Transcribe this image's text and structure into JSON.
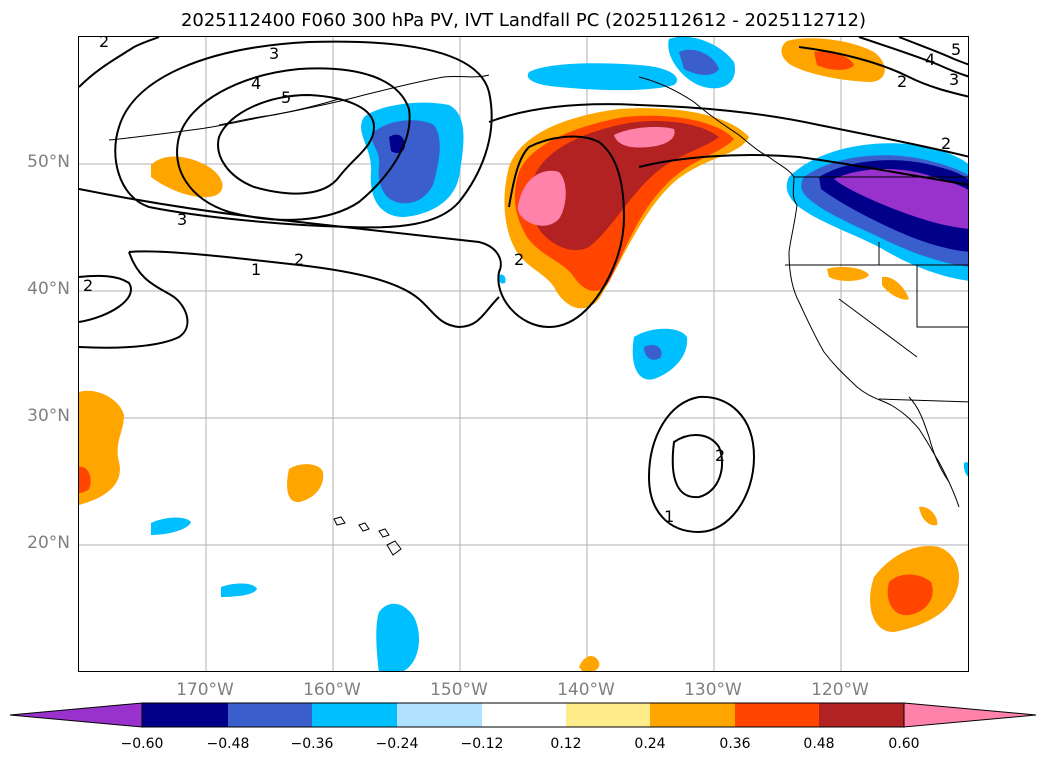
{
  "title": "2025112400 F060 300 hPa PV, IVT Landfall PC (2025112612 - 2025112712)",
  "map": {
    "lat_ticks": [
      "50°N",
      "40°N",
      "30°N",
      "20°N"
    ],
    "lon_ticks": [
      "170°W",
      "160°W",
      "150°W",
      "140°W",
      "130°W",
      "120°W"
    ],
    "colors": {
      "neg_060": "#9932CC",
      "neg_048": "#00008B",
      "neg_036": "#3A5FCD",
      "neg_024": "#00BFFF",
      "neg_012": "#B0E2FF",
      "pos_012": "#FFEC8B",
      "pos_024": "#FFA500",
      "pos_036": "#FF4500",
      "pos_048": "#B22222",
      "pos_060": "#FF82AB",
      "contour": "#000000",
      "coast": "#000000",
      "grid": "#b0b0b0"
    },
    "contour_labels": [
      "2",
      "3",
      "4",
      "5",
      "3",
      "2",
      "1",
      "2",
      "2",
      "2",
      "1",
      "2",
      "4",
      "5",
      "3",
      "2"
    ]
  },
  "colorbar": {
    "ticks": [
      "−0.60",
      "−0.48",
      "−0.36",
      "−0.24",
      "−0.12",
      "0.12",
      "0.24",
      "0.36",
      "0.48",
      "0.60"
    ]
  }
}
